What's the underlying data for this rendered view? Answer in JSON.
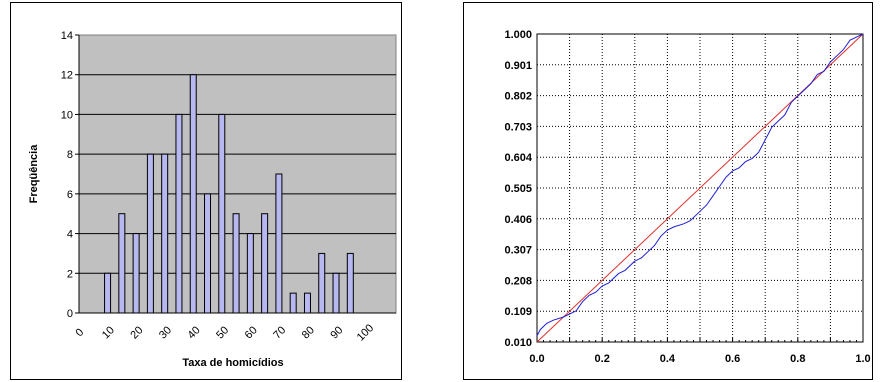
{
  "chart_data": [
    {
      "type": "bar",
      "title": "",
      "xlabel": "Taxa de homicídios",
      "ylabel": "Freqüência",
      "ylim": [
        0,
        14
      ],
      "yticks": [
        "0",
        "2",
        "4",
        "6",
        "8",
        "10",
        "12",
        "14"
      ],
      "xticks": [
        "0",
        "10",
        "20",
        "30",
        "40",
        "50",
        "60",
        "70",
        "80",
        "90",
        "100"
      ],
      "categories": [
        "10",
        "15",
        "20",
        "25",
        "30",
        "35",
        "40",
        "45",
        "50",
        "55",
        "60",
        "65",
        "70",
        "75",
        "80",
        "85",
        "90",
        "95"
      ],
      "values": [
        2,
        5,
        4,
        8,
        8,
        10,
        12,
        6,
        10,
        5,
        4,
        5,
        7,
        1,
        1,
        3,
        2,
        3
      ],
      "colors": {
        "bar": "#b7b8f0",
        "plot_bg": "#c0c0c0",
        "grid": "#000000"
      },
      "grid": "horizontal"
    },
    {
      "type": "line",
      "title": "",
      "xlabel": "",
      "ylabel": "",
      "xlim": [
        0.0,
        1.0
      ],
      "ylim": [
        0.01,
        1.0
      ],
      "xticks": [
        "0.0",
        "0.2",
        "0.4",
        "0.6",
        "0.8",
        "1.0"
      ],
      "yticks": [
        "0.010",
        "0.109",
        "0.208",
        "0.307",
        "0.406",
        "0.505",
        "0.604",
        "0.703",
        "0.802",
        "0.901",
        "1.000"
      ],
      "grid": "dotted",
      "series": [
        {
          "color": "#e0302a",
          "x": [
            0.0,
            1.0
          ],
          "y": [
            0.01,
            1.0
          ]
        },
        {
          "color": "#1f1fd6",
          "x": [
            0.0,
            0.01,
            0.03,
            0.05,
            0.08,
            0.1,
            0.12,
            0.14,
            0.16,
            0.18,
            0.2,
            0.22,
            0.25,
            0.27,
            0.3,
            0.32,
            0.34,
            0.36,
            0.38,
            0.4,
            0.42,
            0.45,
            0.47,
            0.5,
            0.52,
            0.54,
            0.56,
            0.58,
            0.6,
            0.62,
            0.64,
            0.66,
            0.68,
            0.7,
            0.71,
            0.72,
            0.74,
            0.76,
            0.78,
            0.8,
            0.82,
            0.84,
            0.86,
            0.88,
            0.9,
            0.92,
            0.94,
            0.96,
            0.98,
            1.0
          ],
          "y": [
            0.03,
            0.05,
            0.07,
            0.08,
            0.09,
            0.1,
            0.11,
            0.14,
            0.16,
            0.17,
            0.19,
            0.2,
            0.23,
            0.24,
            0.27,
            0.28,
            0.3,
            0.32,
            0.35,
            0.37,
            0.38,
            0.39,
            0.4,
            0.43,
            0.45,
            0.48,
            0.51,
            0.54,
            0.56,
            0.57,
            0.59,
            0.6,
            0.62,
            0.66,
            0.68,
            0.7,
            0.72,
            0.74,
            0.78,
            0.8,
            0.82,
            0.84,
            0.87,
            0.88,
            0.91,
            0.93,
            0.95,
            0.98,
            0.99,
            1.0
          ]
        }
      ]
    }
  ]
}
